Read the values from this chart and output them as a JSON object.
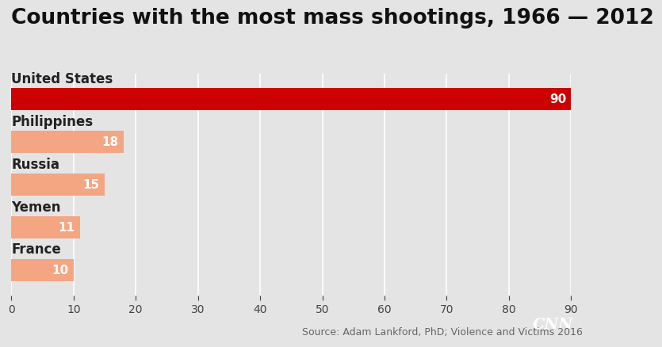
{
  "title": "Countries with the most mass shootings, 1966 — 2012",
  "categories": [
    "United States",
    "Philippines",
    "Russia",
    "Yemen",
    "France"
  ],
  "values": [
    90,
    18,
    15,
    11,
    10
  ],
  "bar_colors": [
    "#cc0000",
    "#f4a582",
    "#f4a582",
    "#f4a582",
    "#f4a582"
  ],
  "xlim": [
    0,
    90
  ],
  "xticks": [
    0,
    10,
    20,
    30,
    40,
    50,
    60,
    70,
    80,
    90
  ],
  "background_color": "#e4e4e4",
  "plot_bg_color": "#e4e4e4",
  "title_fontsize": 19,
  "label_fontsize": 12,
  "value_fontsize": 11,
  "source_text": "Source: Adam Lankford, PhD; Violence and Victims 2016",
  "source_fontsize": 9,
  "cnn_logo_color": "#cc0000",
  "value_label_color": "#ffffff",
  "category_label_color": "#222222",
  "bar_height": 0.52
}
